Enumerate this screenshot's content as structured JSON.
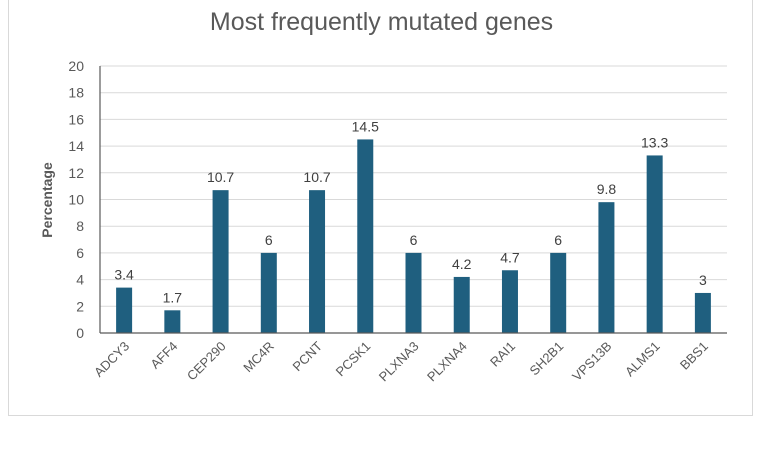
{
  "chart_data": {
    "type": "bar",
    "title": "Most frequently mutated genes",
    "xlabel": "",
    "ylabel": "Percentage",
    "ylim": [
      0,
      20
    ],
    "yticks": [
      0,
      2,
      4,
      6,
      8,
      10,
      12,
      14,
      16,
      18,
      20
    ],
    "grid": true,
    "categories": [
      "ADCY3",
      "AFF4",
      "CEP290",
      "MC4R",
      "PCNT",
      "PCSK1",
      "PLXNA3",
      "PLXNA4",
      "RAI1",
      "SH2B1",
      "VPS13B",
      "ALMS1",
      "BBS1"
    ],
    "values": [
      3.4,
      1.7,
      10.7,
      6,
      10.7,
      14.5,
      6,
      4.2,
      4.7,
      6,
      9.8,
      13.3,
      3
    ],
    "data_labels": [
      "3.4",
      "1.7",
      "10.7",
      "6",
      "10.7",
      "14.5",
      "6",
      "4.2",
      "4.7",
      "6",
      "9.8",
      "13.3",
      "3"
    ],
    "bar_color": "#1f5f7f",
    "grid_color": "#d9d9d9"
  }
}
